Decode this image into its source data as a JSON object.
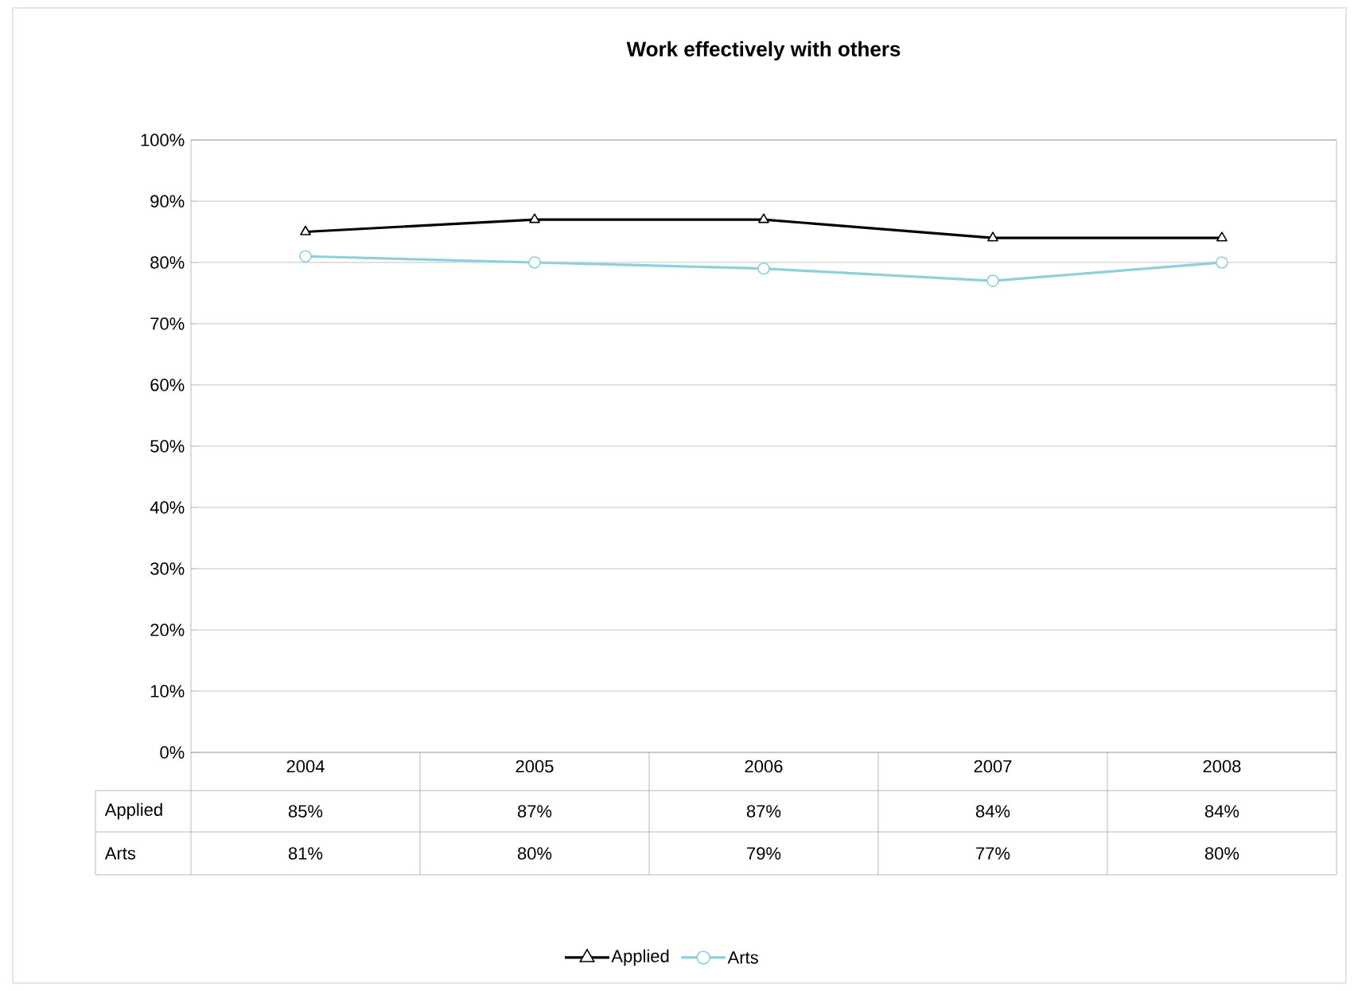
{
  "chart_data": {
    "type": "line",
    "title": "Work effectively with others",
    "categories": [
      "2004",
      "2005",
      "2006",
      "2007",
      "2008"
    ],
    "series": [
      {
        "name": "Applied",
        "color": "#000000",
        "marker": "triangle",
        "values": [
          85,
          87,
          87,
          84,
          84
        ],
        "value_labels": [
          "85%",
          "87%",
          "87%",
          "84%",
          "84%"
        ]
      },
      {
        "name": "Arts",
        "color": "#8ecfdc",
        "marker": "circle",
        "values": [
          81,
          80,
          79,
          77,
          80
        ],
        "value_labels": [
          "81%",
          "80%",
          "79%",
          "77%",
          "80%"
        ]
      }
    ],
    "ylim": [
      0,
      100
    ],
    "yticks": [
      {
        "value": 0,
        "label": "0%"
      },
      {
        "value": 10,
        "label": "10%"
      },
      {
        "value": 20,
        "label": "20%"
      },
      {
        "value": 30,
        "label": "30%"
      },
      {
        "value": 40,
        "label": "40%"
      },
      {
        "value": 50,
        "label": "50%"
      },
      {
        "value": 60,
        "label": "60%"
      },
      {
        "value": 70,
        "label": "70%"
      },
      {
        "value": 80,
        "label": "80%"
      },
      {
        "value": 90,
        "label": "90%"
      },
      {
        "value": 100,
        "label": "100%"
      }
    ],
    "grid": "y",
    "legend": "bottom",
    "line_style": "solid"
  }
}
